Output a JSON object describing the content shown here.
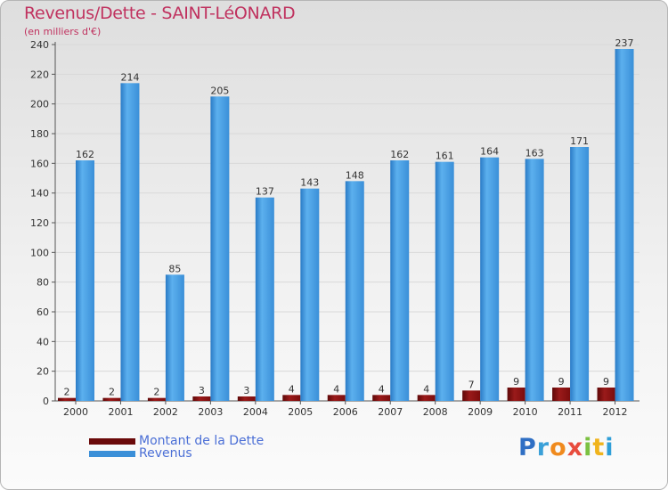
{
  "title": "Revenus/Dette - SAINT-LéONARD",
  "subtitle": "(en milliers d'€)",
  "logo": {
    "text": "Proxiti",
    "letter_colors": [
      "#2f6fc4",
      "#3aa0d8",
      "#f08a1d",
      "#e84c3d",
      "#7cc142",
      "#f0b41d",
      "#2f9fd8"
    ]
  },
  "colors": {
    "debt": "#7b0d0d",
    "revenue": "#3a8fd8",
    "grid": "#d9d9d9",
    "axis": "#555555"
  },
  "chart_data": {
    "type": "bar",
    "title": "Revenus/Dette - SAINT-LéONARD",
    "ylabel": "(en milliers d'€)",
    "xlabel": "",
    "categories": [
      "2000",
      "2001",
      "2002",
      "2003",
      "2004",
      "2005",
      "2006",
      "2007",
      "2008",
      "2009",
      "2010",
      "2011",
      "2012"
    ],
    "ylim": [
      0,
      240
    ],
    "yticks": [
      0,
      20,
      40,
      60,
      80,
      100,
      120,
      140,
      160,
      180,
      200,
      220,
      240
    ],
    "grid": true,
    "legend": "bottom-left",
    "series": [
      {
        "name": "Montant de la Dette",
        "values": [
          2,
          2,
          2,
          3,
          3,
          4,
          4,
          4,
          4,
          7,
          9,
          9,
          9
        ]
      },
      {
        "name": "Revenus",
        "values": [
          162,
          214,
          85,
          205,
          137,
          143,
          148,
          162,
          161,
          164,
          163,
          171,
          237
        ]
      }
    ]
  }
}
